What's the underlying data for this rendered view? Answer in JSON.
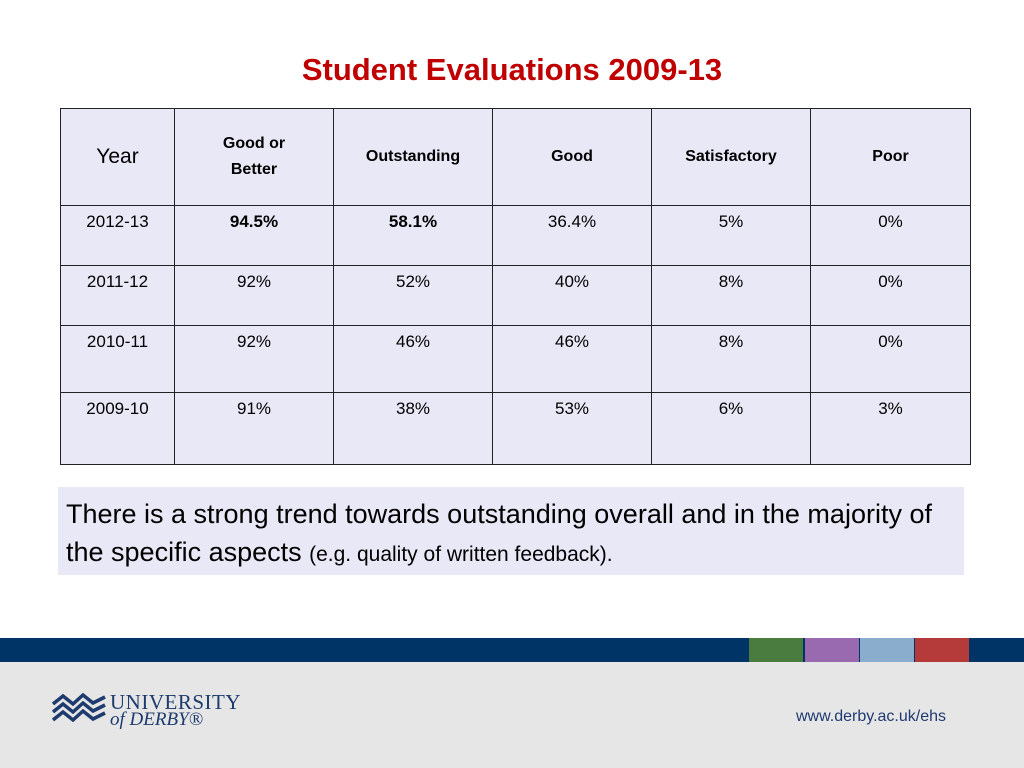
{
  "title": "Student Evaluations 2009-13",
  "table": {
    "headers": [
      "Year",
      "Good or Better",
      "Outstanding",
      "Good",
      "Satisfactory",
      "Poor"
    ],
    "rows": [
      [
        "2012-13",
        "94.5%",
        "58.1%",
        "36.4%",
        "5%",
        "0%"
      ],
      [
        "2011-12",
        "92%",
        "52%",
        "40%",
        "8%",
        "0%"
      ],
      [
        "2010-11",
        "92%",
        "46%",
        "46%",
        "8%",
        "0%"
      ],
      [
        "2009-10",
        "91%",
        "38%",
        "53%",
        "6%",
        "3%"
      ]
    ]
  },
  "note": {
    "main": "There is a strong trend towards outstanding overall and in the majority of the specific aspects ",
    "small": "(e.g. quality of written feedback)."
  },
  "footer": {
    "logo_line1": "UNIVERSITY",
    "logo_line2": "of DERBY®",
    "url": "www.derby.ac.uk/ehs",
    "swatch_colors": [
      "#4a7c3f",
      "#9a6ab0",
      "#8aaccd",
      "#b53b3b"
    ],
    "band_color": "#003466"
  }
}
